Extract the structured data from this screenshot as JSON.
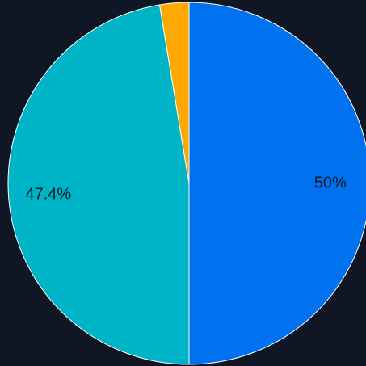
{
  "chart_data": {
    "type": "pie",
    "title": "",
    "slices": [
      {
        "value": 50.0,
        "label": "50%",
        "color": "#0072F0"
      },
      {
        "value": 47.4,
        "label": "47.4%",
        "color": "#00B4C8"
      },
      {
        "value": 2.6,
        "label": "",
        "color": "#FFA800"
      }
    ],
    "start_angle_deg": 0,
    "direction": "clockwise",
    "slice_border_color": "#FFFFFF",
    "background": "#111625"
  }
}
